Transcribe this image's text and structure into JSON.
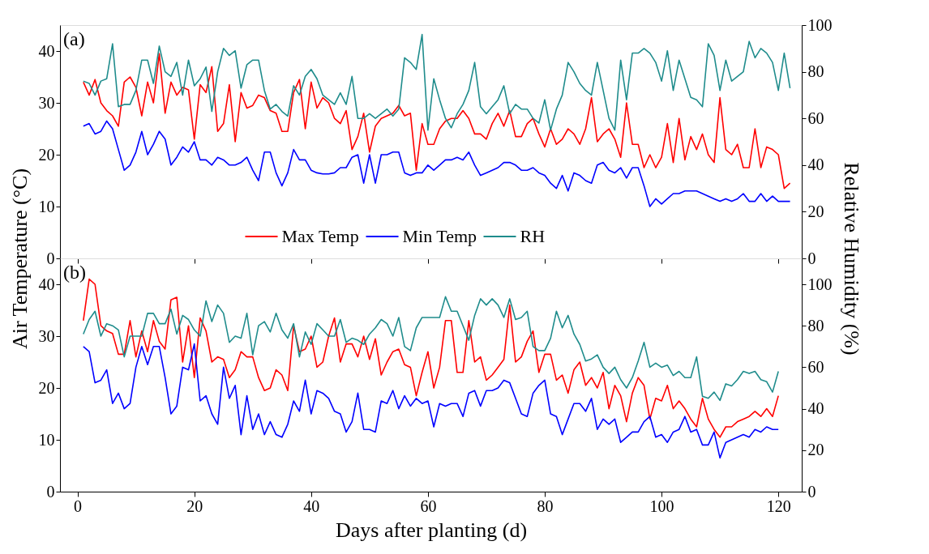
{
  "chart_data": [
    {
      "type": "line",
      "xlim": [
        -3,
        124
      ],
      "xticks": [
        0,
        20,
        40,
        60,
        80,
        100,
        120
      ],
      "ylim": [
        0,
        45
      ],
      "yticks": [
        0,
        10,
        20,
        30,
        40
      ],
      "y2lim": [
        0,
        100
      ],
      "y2ticks": [
        0,
        20,
        40,
        60,
        80,
        100
      ],
      "tick_labels": "y",
      "legend": "bottom",
      "annotations": [
        "(a)"
      ],
      "x": [
        1,
        2,
        3,
        4,
        5,
        6,
        7,
        8,
        9,
        10,
        11,
        12,
        13,
        14,
        15,
        16,
        17,
        18,
        19,
        20,
        21,
        22,
        23,
        24,
        25,
        26,
        27,
        28,
        29,
        30,
        31,
        32,
        33,
        34,
        35,
        36,
        37,
        38,
        39,
        40,
        41,
        42,
        43,
        44,
        45,
        46,
        47,
        48,
        49,
        50,
        51,
        52,
        53,
        54,
        55,
        56,
        57,
        58,
        59,
        60,
        61,
        62,
        63,
        64,
        65,
        66,
        67,
        68,
        69,
        70,
        71,
        72,
        73,
        74,
        75,
        76,
        77,
        78,
        79,
        80,
        81,
        82,
        83,
        84,
        85,
        86,
        87,
        88,
        89,
        90,
        91,
        92,
        93,
        94,
        95,
        96,
        97,
        98,
        99,
        100,
        101,
        102,
        103,
        104,
        105,
        106,
        107,
        108,
        109,
        110,
        111,
        112,
        113,
        114,
        115,
        116,
        117,
        118,
        119,
        120,
        121,
        122
      ],
      "series": [
        {
          "name": "Max Temp",
          "color": "#ff0000",
          "values": [
            34,
            31.5,
            34.5,
            30,
            28.5,
            27.5,
            25.5,
            34,
            35,
            33,
            27.5,
            34,
            30,
            39.5,
            28,
            34,
            31.5,
            33,
            32.5,
            23,
            33.5,
            32,
            37,
            24.5,
            26,
            33.5,
            22.5,
            32,
            29,
            29.5,
            31.5,
            31,
            28.5,
            28,
            24.5,
            24.5,
            32,
            34.5,
            25,
            34,
            29,
            31,
            30,
            27,
            26,
            28.5,
            21,
            23.5,
            28,
            20.5,
            25.5,
            27,
            27.5,
            28,
            29.5,
            27.5,
            28,
            17,
            26,
            22,
            22,
            25,
            26.5,
            27,
            27,
            28.5,
            27,
            24,
            24,
            23,
            26,
            28,
            25.5,
            28.5,
            23.5,
            23.5,
            26,
            27,
            24,
            21.5,
            25,
            22,
            23,
            25,
            24,
            22,
            25,
            31,
            22.5,
            24,
            25,
            23,
            19.5,
            30,
            22,
            22,
            17.5,
            20,
            17.5,
            19.5,
            26,
            18.5,
            27,
            19,
            23.5,
            21,
            24,
            20,
            18.5,
            31,
            21,
            20,
            22,
            17.5,
            17.5,
            25,
            17.5,
            21.5,
            21,
            20,
            13.5,
            14.5
          ]
        },
        {
          "name": "Min Temp",
          "color": "#0000ff",
          "values": [
            25.5,
            26,
            24,
            24.5,
            26.5,
            25,
            21,
            17,
            18,
            20.5,
            24.5,
            20,
            22,
            24.5,
            23,
            18,
            19.5,
            21.5,
            20.5,
            22.5,
            19,
            19,
            18,
            19.5,
            19,
            18,
            18,
            18.5,
            19.5,
            17,
            15,
            20.5,
            20.5,
            16.5,
            14,
            16.5,
            21,
            19,
            19,
            17,
            16.5,
            16.3,
            16.3,
            16.5,
            17.5,
            17.5,
            19.5,
            20,
            14.5,
            20,
            14.5,
            20,
            20,
            20.5,
            20.5,
            16.5,
            16,
            16.5,
            16.5,
            18,
            17,
            18,
            19,
            19,
            19.5,
            19,
            20.5,
            18,
            16,
            16.5,
            17,
            17.5,
            18.5,
            18.5,
            18,
            17,
            17,
            17.5,
            16.5,
            16,
            14.5,
            13.5,
            16,
            13,
            16.5,
            16,
            15,
            14.5,
            18,
            18.5,
            17,
            16.5,
            17.5,
            15.5,
            17.5,
            17.5,
            14,
            10,
            11.5,
            10.5,
            11.5,
            12.5,
            12.5,
            13,
            13,
            13,
            12.5,
            12,
            11.5,
            11,
            11.5,
            11,
            11.5,
            12.5,
            11,
            11,
            12.5,
            11,
            12,
            11,
            11,
            11
          ]
        },
        {
          "name": "RH",
          "color": "#1f8c8c",
          "axis": "y2",
          "values": [
            76,
            75,
            70,
            76,
            77,
            92,
            65,
            66,
            66,
            72,
            85,
            85,
            75,
            91,
            80,
            78,
            84,
            70,
            85,
            74,
            77,
            82,
            63,
            80,
            90,
            87,
            89,
            73,
            83,
            85,
            85,
            72,
            64,
            66,
            63,
            61,
            74,
            70,
            78,
            81,
            77,
            70,
            68,
            66,
            71,
            66,
            78,
            60,
            60,
            62,
            60,
            62,
            64,
            61,
            64,
            86,
            84,
            81,
            96,
            55,
            77,
            68,
            60,
            56,
            62,
            66,
            72,
            84,
            65,
            62,
            65,
            68,
            74,
            62,
            66,
            64,
            64,
            60,
            58,
            68,
            55,
            64,
            70,
            84,
            80,
            75,
            72,
            70,
            84,
            72,
            60,
            55,
            85,
            68,
            88,
            88,
            90,
            88,
            84,
            76,
            89,
            72,
            85,
            77,
            69,
            68,
            65,
            92,
            87,
            72,
            85,
            76,
            78,
            80,
            93,
            86,
            90,
            88,
            84,
            72,
            88,
            73
          ]
        }
      ]
    },
    {
      "type": "line",
      "xlim": [
        -3,
        124
      ],
      "xticks": [
        0,
        20,
        40,
        60,
        80,
        100,
        120
      ],
      "ylim": [
        0,
        45
      ],
      "yticks": [
        0,
        10,
        20,
        30,
        40
      ],
      "y2lim": [
        0,
        112.5
      ],
      "y2ticks": [
        0,
        20,
        40,
        60,
        80,
        100
      ],
      "xlabel": "Days after planting (d)",
      "ylabel": "Air Temperature (°C)",
      "y2label": "Relative Humidity (%)",
      "annotations": [
        "(b)"
      ],
      "x": [
        1,
        2,
        3,
        4,
        5,
        6,
        7,
        8,
        9,
        10,
        11,
        12,
        13,
        14,
        15,
        16,
        17,
        18,
        19,
        20,
        21,
        22,
        23,
        24,
        25,
        26,
        27,
        28,
        29,
        30,
        31,
        32,
        33,
        34,
        35,
        36,
        37,
        38,
        39,
        40,
        41,
        42,
        43,
        44,
        45,
        46,
        47,
        48,
        49,
        50,
        51,
        52,
        53,
        54,
        55,
        56,
        57,
        58,
        59,
        60,
        61,
        62,
        63,
        64,
        65,
        66,
        67,
        68,
        69,
        70,
        71,
        72,
        73,
        74,
        75,
        76,
        77,
        78,
        79,
        80,
        81,
        82,
        83,
        84,
        85,
        86,
        87,
        88,
        89,
        90,
        91,
        92,
        93,
        94,
        95,
        96,
        97,
        98,
        99,
        100,
        101,
        102,
        103,
        104,
        105,
        106,
        107,
        108,
        109,
        110,
        111,
        112,
        113,
        114,
        115,
        116,
        117,
        118,
        119,
        120
      ],
      "series": [
        {
          "color": "#ff0000",
          "values": [
            33,
            41,
            40,
            32,
            31,
            30.5,
            26.5,
            26.5,
            33,
            26,
            31,
            27,
            33,
            29,
            27.5,
            37,
            37.5,
            25,
            32,
            22,
            33.5,
            31,
            25,
            26,
            25.5,
            22,
            23.5,
            27,
            26,
            26,
            22,
            19.5,
            20,
            23.5,
            22.5,
            19.5,
            32,
            27,
            27.5,
            30,
            24,
            25,
            30,
            33.5,
            25,
            28.5,
            28.5,
            26,
            30,
            25.5,
            29.5,
            22.5,
            25,
            27,
            27.5,
            24.5,
            24,
            18.5,
            23,
            27,
            20,
            24,
            33,
            33,
            23,
            23,
            33,
            25,
            26,
            21.5,
            22.5,
            24,
            25.5,
            36,
            25,
            26,
            29,
            31,
            23,
            26.5,
            26.5,
            21.5,
            22.5,
            19,
            23.5,
            25,
            20.5,
            22,
            20,
            23,
            16,
            20.5,
            18.5,
            13.5,
            19,
            22,
            20.5,
            14,
            18,
            17.5,
            20.5,
            16,
            17.5,
            16,
            14,
            12.5,
            18,
            14,
            12,
            10.5,
            12.5,
            12.5,
            13.5,
            14,
            14.5,
            15.5,
            14.5,
            16,
            14.5,
            18.5
          ]
        },
        {
          "color": "#0000ff",
          "values": [
            28,
            27,
            21,
            21.5,
            23.5,
            17,
            19,
            16,
            17,
            24,
            28,
            24.5,
            28,
            28,
            22,
            15,
            16.5,
            24,
            23.5,
            28.5,
            17.5,
            18.5,
            15,
            13,
            24,
            18,
            20.5,
            11,
            18.5,
            12,
            15,
            11,
            13.5,
            11,
            10.5,
            13,
            17.5,
            15.5,
            21.5,
            15,
            19.5,
            19,
            18,
            15.5,
            15,
            11.5,
            13.5,
            19,
            12,
            12,
            11.5,
            17.5,
            17,
            19.5,
            16,
            18.5,
            16.5,
            18,
            17,
            17.5,
            12.5,
            17,
            16.5,
            17,
            17,
            14.5,
            19,
            19.5,
            16.5,
            19.5,
            19.5,
            20,
            21.5,
            21,
            18,
            15,
            14.5,
            19,
            20.5,
            21.5,
            15,
            14.5,
            11,
            14,
            17,
            17,
            15.5,
            18,
            12,
            14,
            13,
            14,
            9.5,
            10.5,
            11.5,
            11.5,
            13.5,
            14.5,
            10.5,
            11,
            9.5,
            11.5,
            12,
            14.5,
            11.5,
            12,
            9,
            9,
            11.5,
            6.5,
            9.5,
            10,
            10.5,
            11,
            10.5,
            12,
            11.5,
            12.5,
            12,
            12
          ]
        },
        {
          "color": "#1f8c8c",
          "axis": "y2",
          "values": [
            76,
            83,
            87,
            75,
            81,
            80,
            78,
            65,
            75,
            75,
            75,
            86,
            86,
            81,
            81,
            88,
            76,
            85,
            83,
            78,
            75,
            92,
            82,
            90,
            86,
            72,
            75,
            74,
            86,
            66,
            80,
            82,
            77,
            86,
            78,
            74,
            81,
            65,
            77,
            71,
            81,
            78,
            75,
            75,
            83,
            72,
            74,
            73,
            71,
            76,
            79,
            83,
            81,
            75,
            84,
            70,
            68,
            79,
            84,
            84,
            84,
            84,
            94,
            87,
            87,
            80,
            73,
            85,
            93,
            90,
            93,
            90,
            84,
            93,
            83,
            84,
            87,
            70,
            68,
            68,
            74,
            87,
            79,
            85,
            76,
            71,
            63,
            64,
            66,
            60,
            57,
            60,
            54,
            50,
            55,
            63,
            72,
            60,
            62,
            60,
            61,
            56,
            58,
            55,
            55,
            65,
            46,
            45,
            48,
            44,
            52,
            51,
            54,
            58,
            57,
            58,
            54,
            53,
            48,
            58
          ]
        }
      ]
    }
  ]
}
